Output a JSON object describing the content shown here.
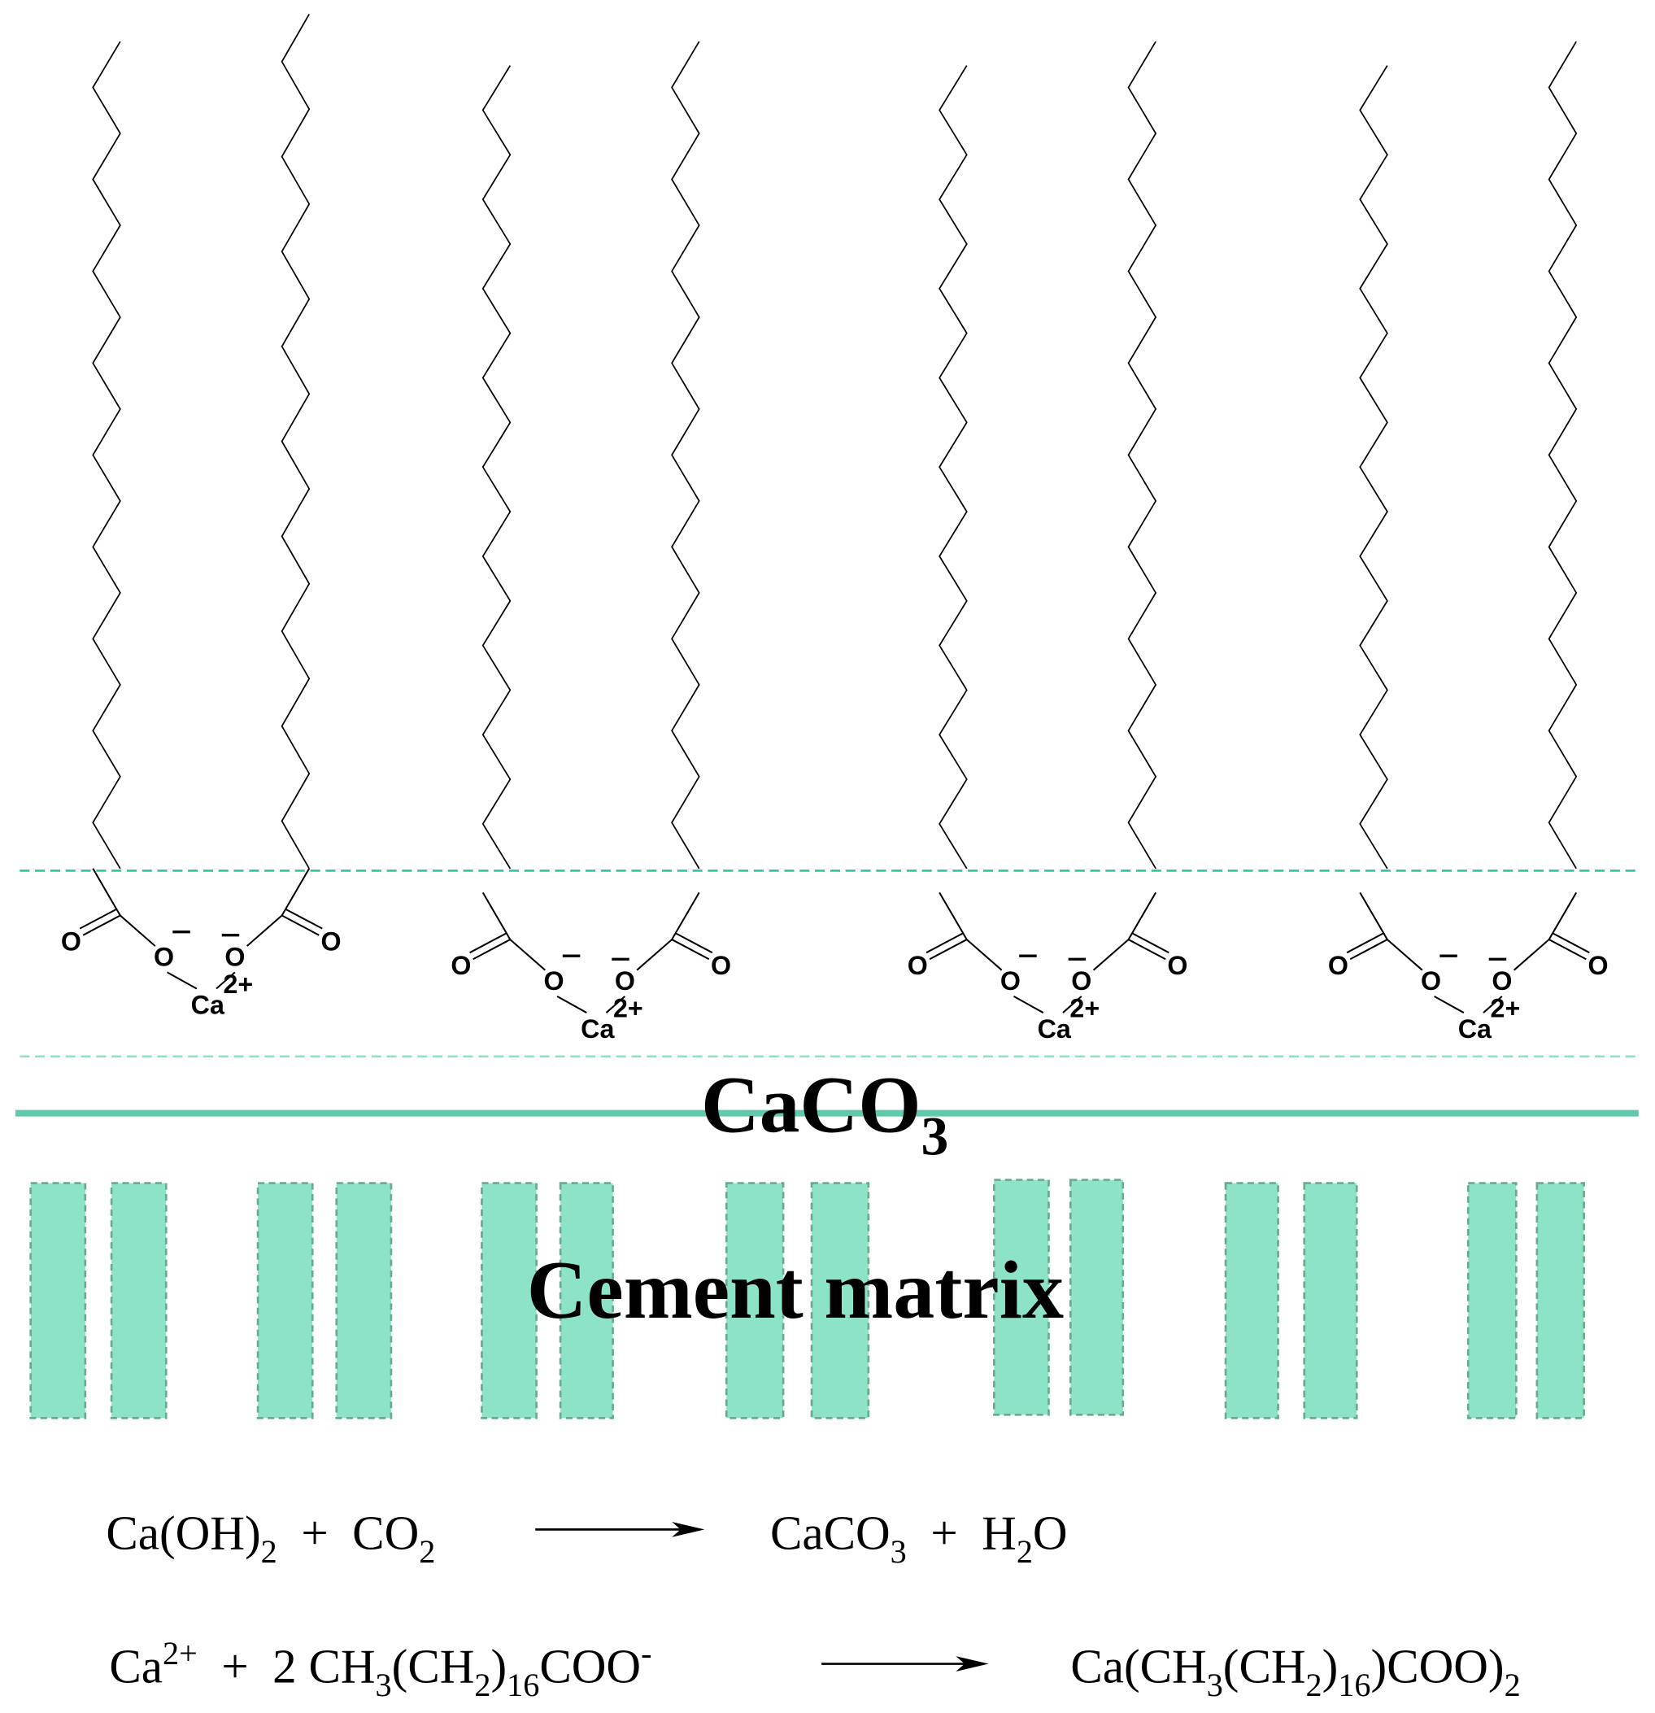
{
  "molecules": [
    {
      "atoms": [
        "O",
        "O",
        "O",
        "O"
      ],
      "metal": "Ca",
      "charge": "2+"
    },
    {
      "atoms": [
        "O",
        "O",
        "O",
        "O"
      ],
      "metal": "Ca",
      "charge": "2+"
    },
    {
      "atoms": [
        "O",
        "O",
        "O",
        "O"
      ],
      "metal": "Ca",
      "charge": "2+"
    },
    {
      "atoms": [
        "O",
        "O",
        "O",
        "O"
      ],
      "metal": "Ca",
      "charge": "2+"
    }
  ],
  "layer_label": [
    "CaCO",
    {
      "sub": "3"
    }
  ],
  "matrix_label": "Cement matrix",
  "equations": [
    {
      "left": [
        "Ca(OH)",
        {
          "sub": "2"
        },
        "  +  CO",
        {
          "sub": "2"
        }
      ],
      "right": [
        "CaCO",
        {
          "sub": "3"
        },
        "  +  H",
        {
          "sub": "2"
        },
        "O"
      ]
    },
    {
      "left": [
        "Ca",
        {
          "sup": "2+"
        },
        "  +  2 CH",
        {
          "sub": "3"
        },
        "(CH",
        {
          "sub": "2"
        },
        ")",
        {
          "sub": "16"
        },
        "COO",
        {
          "sup": "-"
        }
      ],
      "right": [
        "Ca(CH",
        {
          "sub": "3"
        },
        "(CH",
        {
          "sub": "2"
        },
        ")",
        {
          "sub": "16"
        },
        ")COO)",
        {
          "sub": "2"
        }
      ]
    }
  ]
}
